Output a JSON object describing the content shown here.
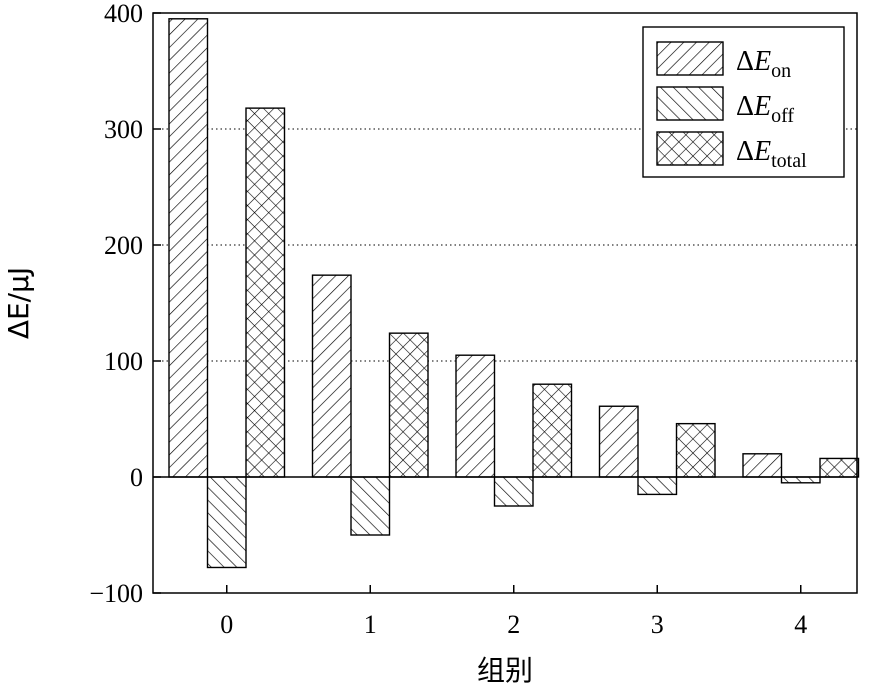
{
  "chart_data": {
    "type": "bar",
    "categories": [
      "0",
      "1",
      "2",
      "3",
      "4"
    ],
    "series": [
      {
        "name": "ΔE_on",
        "label_main": "ΔE",
        "label_sub": "on",
        "values": [
          395,
          174,
          105,
          61,
          20
        ],
        "pattern": "forward-diagonal"
      },
      {
        "name": "ΔE_off",
        "label_main": "ΔE",
        "label_sub": "off",
        "values": [
          -78,
          -50,
          -25,
          -15,
          -5
        ],
        "pattern": "backward-diagonal"
      },
      {
        "name": "ΔE_total",
        "label_main": "ΔE",
        "label_sub": "total",
        "values": [
          318,
          124,
          80,
          46,
          16
        ],
        "pattern": "crosshatch"
      }
    ],
    "xlabel": "组别",
    "ylabel": "ΔE/μJ",
    "ylim": [
      -100,
      400
    ],
    "yticks": [
      -100,
      0,
      100,
      200,
      300,
      400
    ],
    "ytick_labels": [
      "−100",
      "0",
      "100",
      "200",
      "300",
      "400"
    ],
    "gridlines": [
      100,
      200,
      300
    ],
    "grid": "horizontal-dotted",
    "legend_position": "top-right",
    "colors": {
      "bar_fill": "#ffffff",
      "stroke": "#000000"
    }
  }
}
